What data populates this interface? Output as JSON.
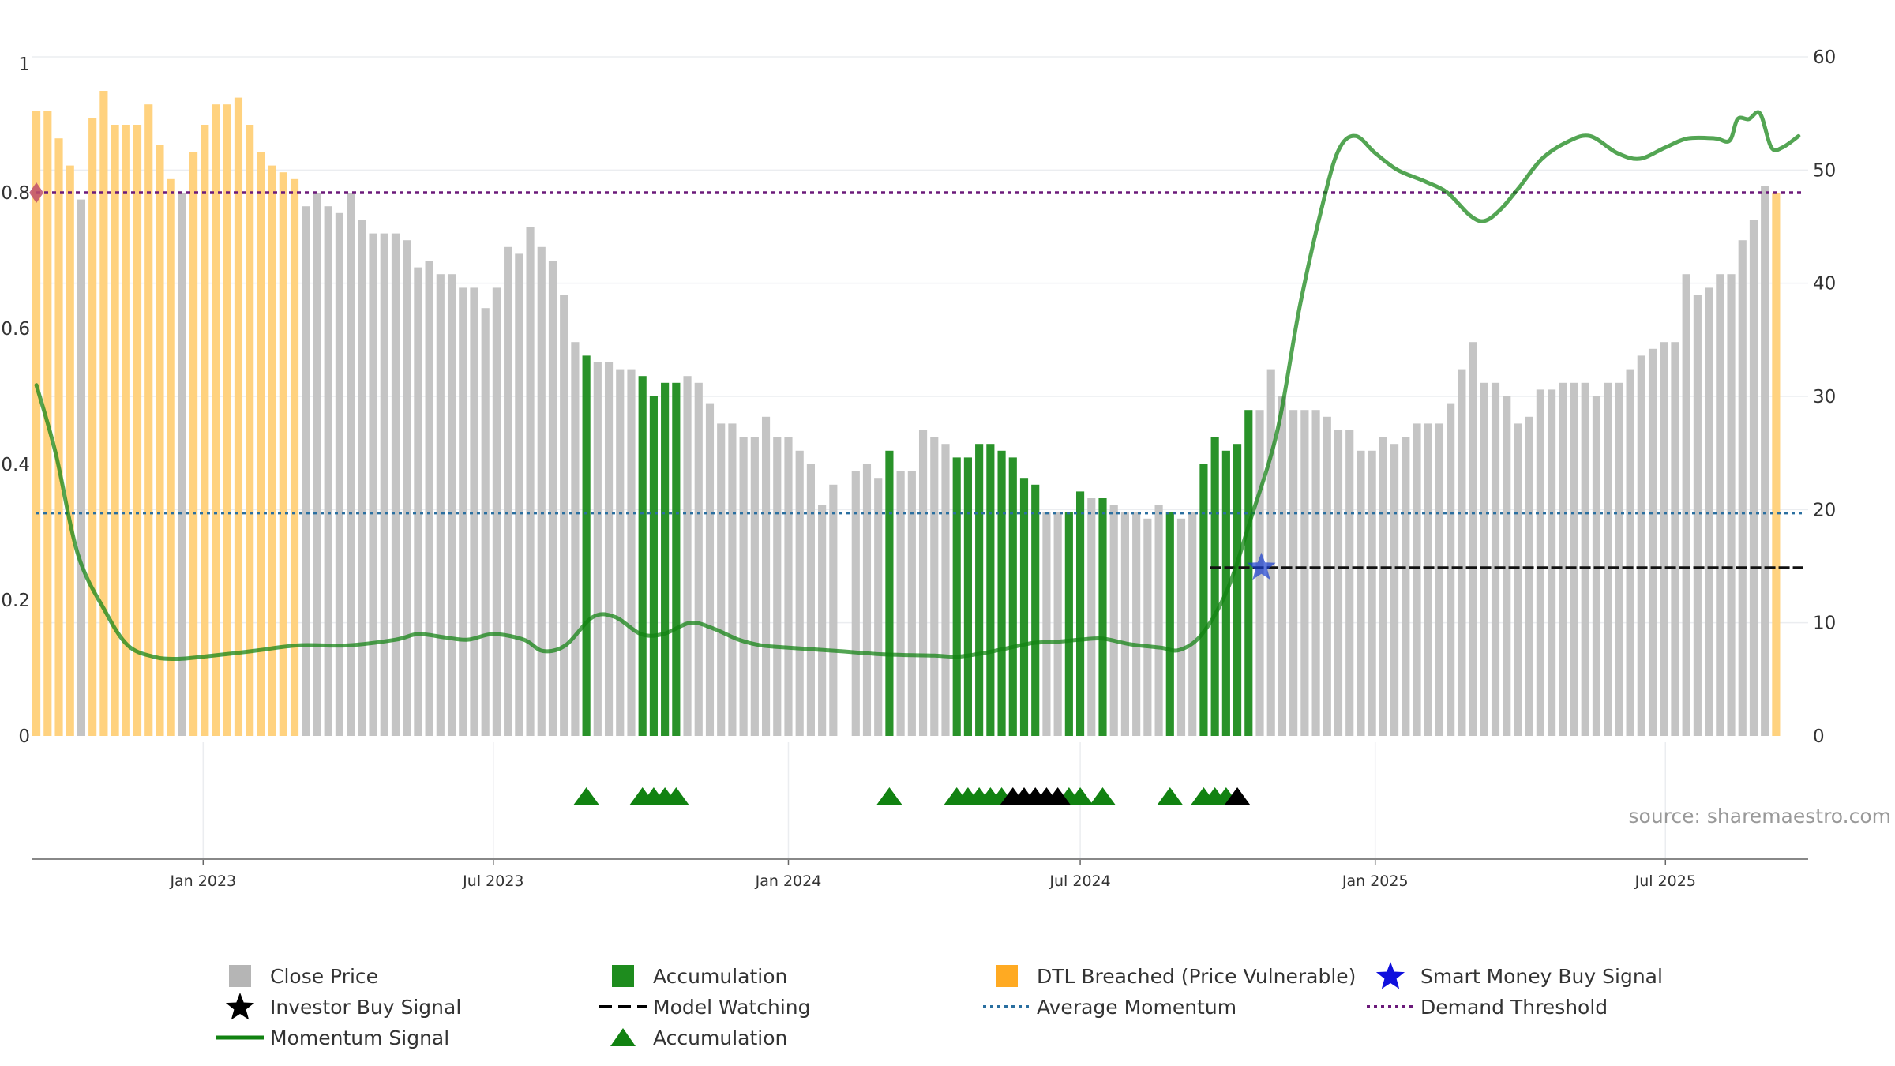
{
  "chart_data": {
    "type": "bar",
    "title": "",
    "source_text": "source: sharemaestro.com",
    "y_left": {
      "ticks": [
        "0",
        "0.2",
        "0.4",
        "0.6",
        "0.8",
        "1"
      ],
      "range": [
        0,
        1
      ]
    },
    "y_right": {
      "ticks": [
        "0",
        "10",
        "20",
        "30",
        "40",
        "50",
        "60"
      ],
      "range": [
        0,
        60
      ]
    },
    "x_ticks": [
      {
        "date": "2023-01-01",
        "label": "Jan 2023"
      },
      {
        "date": "2023-07-01",
        "label": "Jul 2023"
      },
      {
        "date": "2024-01-01",
        "label": "Jan 2024"
      },
      {
        "date": "2024-07-01",
        "label": "Jul 2024"
      },
      {
        "date": "2025-01-01",
        "label": "Jan 2025"
      },
      {
        "date": "2025-07-01",
        "label": "Jul 2025"
      }
    ],
    "x_range": [
      "2022-09-16",
      "2025-09-28"
    ],
    "bars": {
      "start_date": "2022-09-19",
      "step_days": 7,
      "bar_width_days": 5,
      "values": [
        0.92,
        0.92,
        0.88,
        0.84,
        0.79,
        0.91,
        0.95,
        0.9,
        0.9,
        0.9,
        0.93,
        0.87,
        0.82,
        0.8,
        0.86,
        0.9,
        0.93,
        0.93,
        0.94,
        0.9,
        0.86,
        0.84,
        0.83,
        0.82,
        0.78,
        0.8,
        0.78,
        0.77,
        0.8,
        0.76,
        0.74,
        0.74,
        0.74,
        0.73,
        0.69,
        0.7,
        0.68,
        0.68,
        0.66,
        0.66,
        0.63,
        0.66,
        0.72,
        0.71,
        0.75,
        0.72,
        0.7,
        0.65,
        0.58,
        0.56,
        0.55,
        0.55,
        0.54,
        0.54,
        0.53,
        0.5,
        0.52,
        0.52,
        0.53,
        0.52,
        0.49,
        0.46,
        0.46,
        0.44,
        0.44,
        0.47,
        0.44,
        0.44,
        0.42,
        0.4,
        0.34,
        0.37,
        null,
        0.39,
        0.4,
        0.38,
        0.42,
        0.39,
        0.39,
        0.45,
        0.44,
        0.43,
        0.41,
        0.41,
        0.43,
        0.43,
        0.42,
        0.41,
        0.38,
        0.37,
        0.33,
        0.33,
        0.33,
        0.36,
        0.35,
        0.35,
        0.34,
        0.33,
        0.33,
        0.32,
        0.34,
        0.33,
        0.32,
        0.33,
        0.4,
        0.44,
        0.42,
        0.43,
        0.48,
        0.48,
        0.54,
        0.5,
        0.48,
        0.48,
        0.48,
        0.47,
        0.45,
        0.45,
        0.42,
        0.42,
        0.44,
        0.43,
        0.44,
        0.46,
        0.46,
        0.46,
        0.49,
        0.54,
        0.58,
        0.52,
        0.52,
        0.5,
        0.46,
        0.47,
        0.51,
        0.51,
        0.52,
        0.52,
        0.52,
        0.5,
        0.52,
        0.52,
        0.54,
        0.56,
        0.57,
        0.58,
        0.58,
        0.68,
        0.65,
        0.66,
        0.68,
        0.68,
        0.73,
        0.76,
        0.81,
        0.8
      ],
      "dtl_breached": [
        [
          0,
          3
        ],
        [
          5,
          12
        ],
        [
          14,
          23
        ],
        [
          155,
          155
        ]
      ],
      "accumulation": [
        49,
        54,
        55,
        56,
        57,
        76,
        82,
        83,
        84,
        85,
        86,
        87,
        88,
        89,
        92,
        93,
        95,
        101,
        104,
        105,
        106,
        107,
        108
      ]
    },
    "momentum": {
      "points": [
        [
          "2022-09-19",
          31
        ],
        [
          "2022-10-01",
          25
        ],
        [
          "2022-10-15",
          16
        ],
        [
          "2022-11-01",
          11
        ],
        [
          "2022-11-15",
          8
        ],
        [
          "2022-12-01",
          7
        ],
        [
          "2022-12-15",
          6.8
        ],
        [
          "2023-01-01",
          7
        ],
        [
          "2023-02-01",
          7.5
        ],
        [
          "2023-03-01",
          8
        ],
        [
          "2023-04-01",
          8
        ],
        [
          "2023-05-01",
          8.5
        ],
        [
          "2023-05-15",
          9
        ],
        [
          "2023-06-01",
          8.7
        ],
        [
          "2023-06-15",
          8.5
        ],
        [
          "2023-07-01",
          9
        ],
        [
          "2023-07-20",
          8.5
        ],
        [
          "2023-08-01",
          7.5
        ],
        [
          "2023-08-15",
          8
        ],
        [
          "2023-09-01",
          10.5
        ],
        [
          "2023-09-15",
          10.5
        ],
        [
          "2023-10-01",
          9
        ],
        [
          "2023-10-15",
          9
        ],
        [
          "2023-11-01",
          10
        ],
        [
          "2023-11-15",
          9.5
        ],
        [
          "2023-12-01",
          8.5
        ],
        [
          "2023-12-15",
          8
        ],
        [
          "2024-01-01",
          7.8
        ],
        [
          "2024-02-01",
          7.5
        ],
        [
          "2024-03-01",
          7.2
        ],
        [
          "2024-04-01",
          7.1
        ],
        [
          "2024-04-15",
          7
        ],
        [
          "2024-05-01",
          7.3
        ],
        [
          "2024-05-15",
          7.7
        ],
        [
          "2024-06-01",
          8.2
        ],
        [
          "2024-06-15",
          8.3
        ],
        [
          "2024-07-01",
          8.5
        ],
        [
          "2024-07-15",
          8.6
        ],
        [
          "2024-08-01",
          8.1
        ],
        [
          "2024-08-20",
          7.8
        ],
        [
          "2024-09-01",
          7.6
        ],
        [
          "2024-09-15",
          9
        ],
        [
          "2024-10-01",
          13
        ],
        [
          "2024-10-15",
          19
        ],
        [
          "2024-11-01",
          27
        ],
        [
          "2024-11-15",
          38
        ],
        [
          "2024-12-01",
          48
        ],
        [
          "2024-12-10",
          52
        ],
        [
          "2024-12-20",
          53
        ],
        [
          "2025-01-01",
          51.5
        ],
        [
          "2025-01-15",
          50
        ],
        [
          "2025-02-01",
          49
        ],
        [
          "2025-02-15",
          48
        ],
        [
          "2025-03-01",
          46
        ],
        [
          "2025-03-10",
          45.5
        ],
        [
          "2025-03-20",
          46.5
        ],
        [
          "2025-04-01",
          48.5
        ],
        [
          "2025-04-15",
          51
        ],
        [
          "2025-05-01",
          52.5
        ],
        [
          "2025-05-15",
          53
        ],
        [
          "2025-06-01",
          51.5
        ],
        [
          "2025-06-15",
          51
        ],
        [
          "2025-07-01",
          52
        ],
        [
          "2025-07-15",
          52.8
        ],
        [
          "2025-08-01",
          52.8
        ],
        [
          "2025-08-10",
          52.6
        ],
        [
          "2025-08-15",
          54.5
        ],
        [
          "2025-08-22",
          54.5
        ],
        [
          "2025-08-29",
          55
        ],
        [
          "2025-09-05",
          52
        ],
        [
          "2025-09-12",
          52
        ],
        [
          "2025-09-22",
          53
        ]
      ]
    },
    "average_momentum": 0.328,
    "demand_threshold": 0.8,
    "model_watching": {
      "start": "2024-09-20",
      "end": "2025-09-25",
      "value": 0.248
    },
    "smart_money_buy_signal": {
      "date": "2024-10-22",
      "value": 0.248
    },
    "demand_marker": {
      "date": "2022-09-19",
      "value": 0.8
    },
    "accumulation_triangles": [
      49,
      54,
      55,
      56,
      57,
      76,
      82,
      83,
      84,
      85,
      86,
      92,
      93,
      95,
      101,
      104,
      105,
      106
    ],
    "investor_buy_signals": [
      87,
      88,
      89,
      90,
      91,
      107
    ]
  },
  "legend": [
    {
      "label": "Close Price",
      "symbol": "square",
      "color": "#b5b5b5"
    },
    {
      "label": "Accumulation",
      "symbol": "square",
      "color": "#1e8c1e"
    },
    {
      "label": "DTL Breached (Price Vulnerable)",
      "symbol": "square",
      "color": "#ffaa22"
    },
    {
      "label": "Smart Money Buy Signal",
      "symbol": "star",
      "color": "#1010dd"
    },
    {
      "label": "Investor Buy Signal",
      "symbol": "star",
      "color": "#000000"
    },
    {
      "label": "Model Watching",
      "symbol": "dash",
      "color": "#000000"
    },
    {
      "label": "Average Momentum",
      "symbol": "dot",
      "color": "#2a6fa0"
    },
    {
      "label": "Demand Threshold",
      "symbol": "dot",
      "color": "#6b1a7a"
    },
    {
      "label": "Momentum Signal",
      "symbol": "line",
      "color": "#118211"
    },
    {
      "label": "Accumulation",
      "symbol": "triangle",
      "color": "#118211"
    }
  ]
}
